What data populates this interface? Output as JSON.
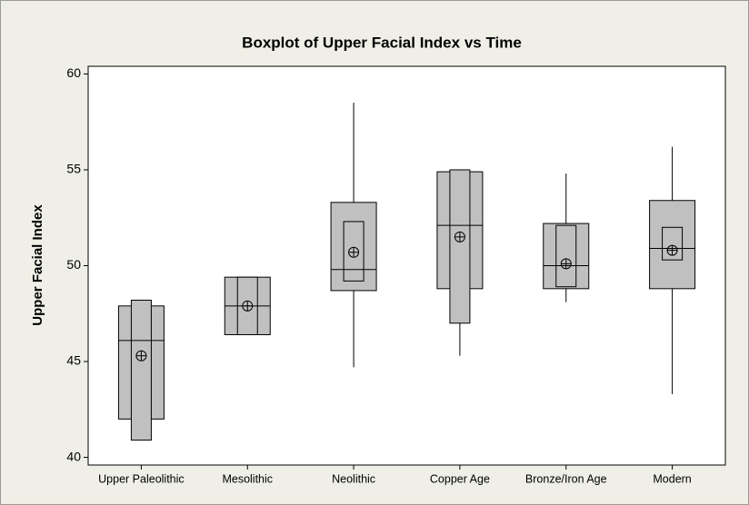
{
  "chart_data": {
    "type": "boxplot",
    "title": "Boxplot of Upper Facial Index vs Time",
    "y_label": "Upper Facial Index",
    "categories": [
      "Upper Paleolithic",
      "Mesolithic",
      "Neolithic",
      "Copper Age",
      "Bronze/Iron Age",
      "Modern"
    ],
    "boxes": [
      {
        "q1": 42.0,
        "median": 46.1,
        "q3": 47.9,
        "mean": 45.3,
        "ci_low": 40.9,
        "ci_high": 48.2,
        "whisker_low": null,
        "whisker_high": null
      },
      {
        "q1": 46.4,
        "median": 47.9,
        "q3": 49.4,
        "mean": 47.9,
        "ci_low": 46.4,
        "ci_high": 49.4,
        "whisker_low": null,
        "whisker_high": null
      },
      {
        "q1": 48.7,
        "median": 49.8,
        "q3": 53.3,
        "mean": 50.7,
        "ci_low": 49.2,
        "ci_high": 52.3,
        "whisker_low": 44.7,
        "whisker_high": 58.5
      },
      {
        "q1": 48.8,
        "median": 52.1,
        "q3": 54.9,
        "mean": 51.5,
        "ci_low": 47.0,
        "ci_high": 55.0,
        "whisker_low": 45.3,
        "whisker_high": null
      },
      {
        "q1": 48.8,
        "median": 50.0,
        "q3": 52.2,
        "mean": 50.1,
        "ci_low": 48.9,
        "ci_high": 52.1,
        "whisker_low": 48.1,
        "whisker_high": 54.8
      },
      {
        "q1": 48.8,
        "median": 50.9,
        "q3": 53.4,
        "mean": 50.8,
        "ci_low": 50.3,
        "ci_high": 52.0,
        "whisker_low": 43.3,
        "whisker_high": 56.2
      }
    ],
    "color": "#c0c0c0",
    "ylim": [
      39.6,
      60.4
    ],
    "yticks": [
      40,
      45,
      50,
      55,
      60
    ]
  }
}
